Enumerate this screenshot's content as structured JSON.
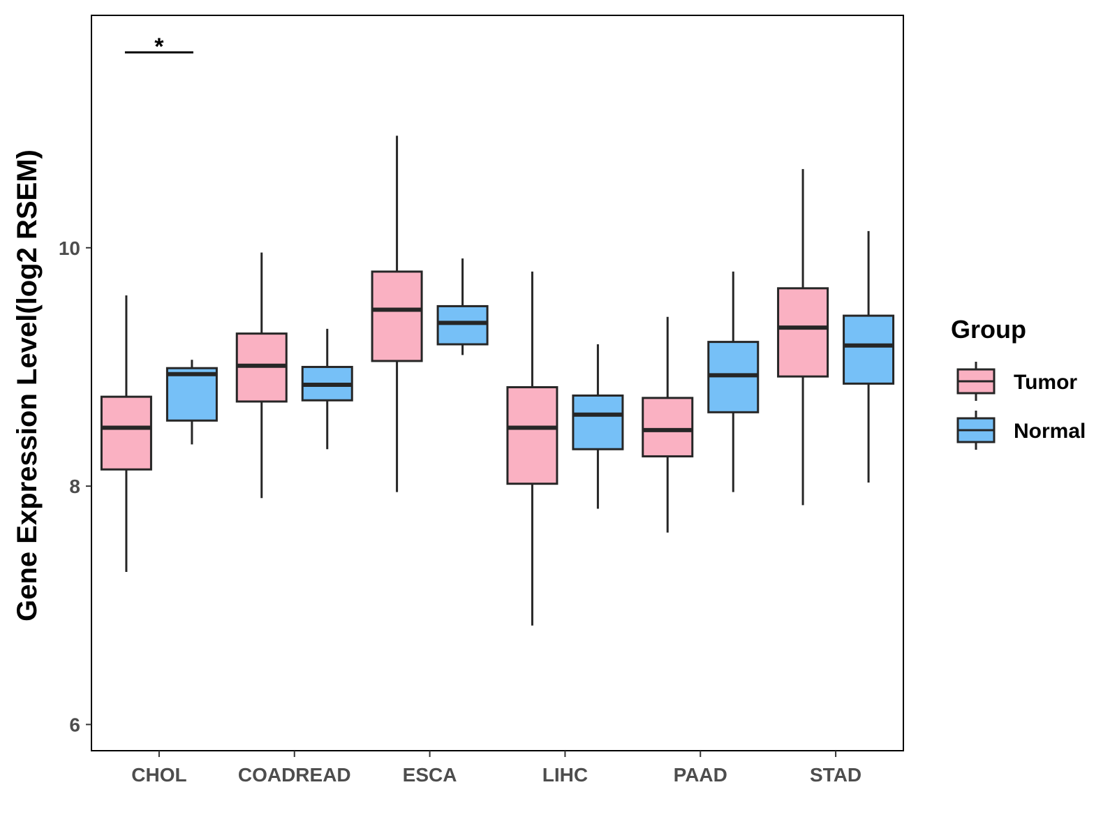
{
  "chart_data": {
    "type": "boxplot",
    "title": "",
    "xlabel": "",
    "ylabel": "Gene Expression Level(log2 RSEM)",
    "ylim": [
      5.78,
      11.95
    ],
    "yticks": [
      6,
      8,
      10
    ],
    "grid": false,
    "legend": {
      "title": "Group",
      "position": "right",
      "entries": [
        "Tumor",
        "Normal"
      ]
    },
    "colors": {
      "Tumor": "#FAB1C2",
      "Normal": "#76C0F7",
      "stroke": "#262626"
    },
    "categories": [
      "CHOL",
      "COADREAD",
      "ESCA",
      "LIHC",
      "PAAD",
      "STAD"
    ],
    "series": [
      {
        "name": "Tumor",
        "boxes": [
          {
            "min": 7.28,
            "q1": 8.14,
            "median": 8.49,
            "q3": 8.75,
            "max": 9.6
          },
          {
            "min": 7.9,
            "q1": 8.71,
            "median": 9.01,
            "q3": 9.28,
            "max": 9.96
          },
          {
            "min": 7.95,
            "q1": 9.05,
            "median": 9.48,
            "q3": 9.8,
            "max": 10.94
          },
          {
            "min": 6.83,
            "q1": 8.02,
            "median": 8.49,
            "q3": 8.83,
            "max": 9.8
          },
          {
            "min": 7.61,
            "q1": 8.25,
            "median": 8.47,
            "q3": 8.74,
            "max": 9.42
          },
          {
            "min": 7.84,
            "q1": 8.92,
            "median": 9.33,
            "q3": 9.66,
            "max": 10.66
          }
        ]
      },
      {
        "name": "Normal",
        "boxes": [
          {
            "min": 8.35,
            "q1": 8.55,
            "median": 8.94,
            "q3": 8.99,
            "max": 9.06
          },
          {
            "min": 8.31,
            "q1": 8.72,
            "median": 8.85,
            "q3": 9.0,
            "max": 9.32
          },
          {
            "min": 9.1,
            "q1": 9.19,
            "median": 9.37,
            "q3": 9.51,
            "max": 9.91
          },
          {
            "min": 7.81,
            "q1": 8.31,
            "median": 8.6,
            "q3": 8.76,
            "max": 9.19
          },
          {
            "min": 7.95,
            "q1": 8.62,
            "median": 8.93,
            "q3": 9.21,
            "max": 9.8
          },
          {
            "min": 8.03,
            "q1": 8.86,
            "median": 9.18,
            "q3": 9.43,
            "max": 10.14
          }
        ]
      }
    ],
    "annotations": [
      {
        "category": "CHOL",
        "text": "*"
      }
    ]
  }
}
